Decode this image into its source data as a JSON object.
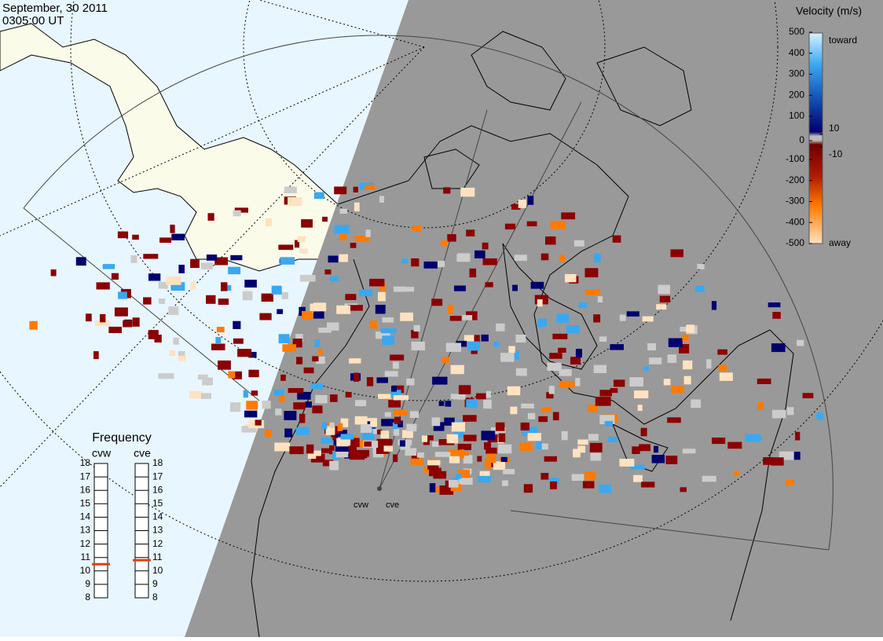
{
  "header": {
    "date": "September, 30 2011",
    "time": "0305:00 UT"
  },
  "colorbar": {
    "title": "Velocity (m/s)",
    "top_label": "toward",
    "bottom_label": "away",
    "left_ticks": [
      500,
      400,
      300,
      200,
      100,
      0,
      -100,
      -200,
      -300,
      -400,
      -500
    ],
    "right_ticks": [
      10,
      -10
    ]
  },
  "frequency": {
    "title": "Frequency",
    "radars": [
      {
        "name": "cvw",
        "value": 10.5
      },
      {
        "name": "cve",
        "value": 10.8
      }
    ],
    "ticks": [
      18,
      17,
      16,
      15,
      14,
      13,
      12,
      11,
      10,
      9,
      8
    ]
  },
  "sites": [
    "cvw",
    "cve"
  ]
}
